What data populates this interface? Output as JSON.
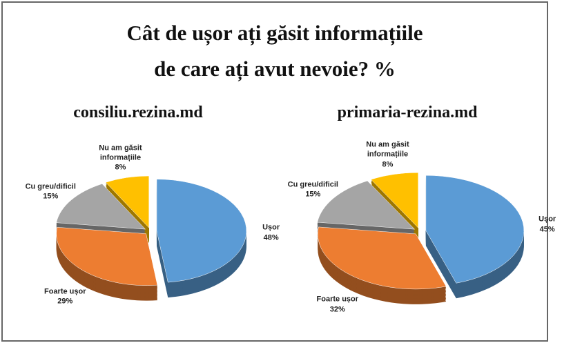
{
  "title_line1": "Cât de ușor ați găsit informațiile",
  "title_line2": "de care ați avut nevoie? %",
  "chart_data": [
    {
      "type": "pie",
      "title": "consiliu.rezina.md",
      "categories": [
        "Ușor",
        "Foarte ușor",
        "Cu greu/dificil",
        "Nu am găsit informațiile"
      ],
      "values": [
        48,
        29,
        15,
        8
      ],
      "value_labels": [
        "48%",
        "29%",
        "15%",
        "8%"
      ],
      "colors": [
        "#5b9bd5",
        "#ed7d31",
        "#a5a5a5",
        "#ffc000"
      ]
    },
    {
      "type": "pie",
      "title": "primaria-rezina.md",
      "categories": [
        "Ușor",
        "Foarte ușor",
        "Cu greu/dificil",
        "Nu am găsit informațiile"
      ],
      "values": [
        45,
        32,
        15,
        8
      ],
      "value_labels": [
        "45%",
        "32%",
        "15%",
        "8%"
      ],
      "colors": [
        "#5b9bd5",
        "#ed7d31",
        "#a5a5a5",
        "#ffc000"
      ]
    }
  ]
}
